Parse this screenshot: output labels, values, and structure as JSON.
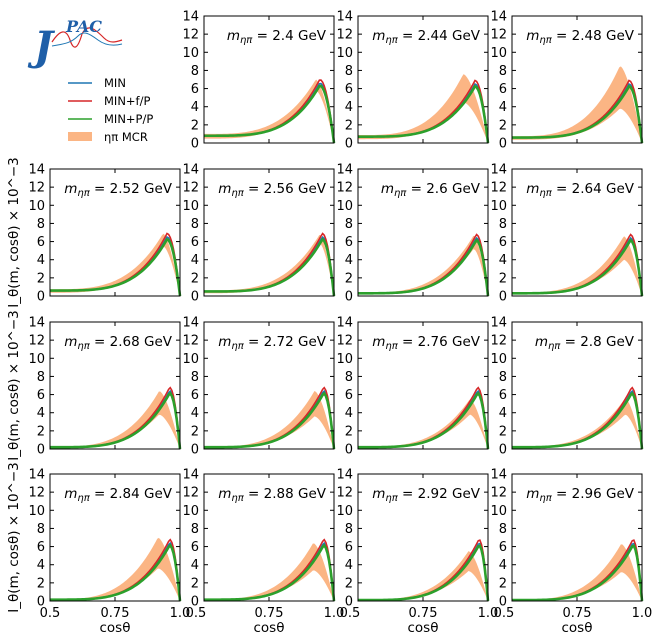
{
  "logo": {
    "big_letter": "J",
    "small_letters": "PAC"
  },
  "legend": {
    "items": [
      {
        "label": "MIN",
        "color": "#1f77b4",
        "kind": "line"
      },
      {
        "label": "MIN+f/P",
        "color": "#d62728",
        "kind": "line"
      },
      {
        "label": "MIN+P/P",
        "color": "#2ca02c",
        "kind": "line"
      },
      {
        "label": "ηπ MCR",
        "color": "#fbb584",
        "kind": "band"
      }
    ]
  },
  "chart_data": {
    "type": "line",
    "xlabel": "cosθ",
    "ylabel": "I_θ(m, cosθ) × 10^−3",
    "xlim": [
      0.5,
      1.0
    ],
    "ylim": [
      0,
      14
    ],
    "xticks": [
      "0.5",
      "0.75",
      "1.0"
    ],
    "yticks": [
      "0",
      "2",
      "4",
      "6",
      "8",
      "10",
      "12",
      "14"
    ],
    "label_prefix": "m",
    "label_subscript": "ηπ",
    "series_names": [
      "MIN",
      "MIN+f/P",
      "MIN+P/P",
      "ηπ MCR"
    ],
    "panels": [
      {
        "mass": "= 2.4 GeV",
        "peak_x": 0.945,
        "peak_y": 6.6,
        "y_start": 0.8,
        "band_peak_x": 0.93,
        "band_upper": 7.0,
        "band_lower": 5.8
      },
      {
        "mass": "= 2.44 GeV",
        "peak_x": 0.95,
        "peak_y": 6.5,
        "y_start": 0.7,
        "band_peak_x": 0.905,
        "band_upper": 7.6,
        "band_lower": 4.5
      },
      {
        "mass": "= 2.48 GeV",
        "peak_x": 0.95,
        "peak_y": 6.5,
        "y_start": 0.6,
        "band_peak_x": 0.915,
        "band_upper": 8.5,
        "band_lower": 3.8
      },
      {
        "mass": "= 2.52 GeV",
        "peak_x": 0.95,
        "peak_y": 6.5,
        "y_start": 0.6,
        "band_peak_x": 0.935,
        "band_upper": 6.9,
        "band_lower": 5.5
      },
      {
        "mass": "= 2.56 GeV",
        "peak_x": 0.955,
        "peak_y": 6.5,
        "y_start": 0.5,
        "band_peak_x": 0.945,
        "band_upper": 6.8,
        "band_lower": 5.8
      },
      {
        "mass": "= 2.6 GeV",
        "peak_x": 0.955,
        "peak_y": 6.4,
        "y_start": 0.3,
        "band_peak_x": 0.945,
        "band_upper": 6.7,
        "band_lower": 5.2
      },
      {
        "mass": "= 2.64 GeV",
        "peak_x": 0.955,
        "peak_y": 6.4,
        "y_start": 0.3,
        "band_peak_x": 0.93,
        "band_upper": 6.6,
        "band_lower": 4.0
      },
      {
        "mass": "= 2.68 GeV",
        "peak_x": 0.96,
        "peak_y": 6.4,
        "y_start": 0.2,
        "band_peak_x": 0.92,
        "band_upper": 6.4,
        "band_lower": 3.8
      },
      {
        "mass": "= 2.72 GeV",
        "peak_x": 0.96,
        "peak_y": 6.4,
        "y_start": 0.2,
        "band_peak_x": 0.925,
        "band_upper": 6.4,
        "band_lower": 3.6
      },
      {
        "mass": "= 2.76 GeV",
        "peak_x": 0.96,
        "peak_y": 6.4,
        "y_start": 0.2,
        "band_peak_x": 0.93,
        "band_upper": 5.5,
        "band_lower": 3.8
      },
      {
        "mass": "= 2.8 GeV",
        "peak_x": 0.96,
        "peak_y": 6.4,
        "y_start": 0.2,
        "band_peak_x": 0.935,
        "band_upper": 5.6,
        "band_lower": 3.8
      },
      {
        "mass": "= 2.84 GeV",
        "peak_x": 0.96,
        "peak_y": 6.4,
        "y_start": 0.15,
        "band_peak_x": 0.915,
        "band_upper": 7.0,
        "band_lower": 3.6
      },
      {
        "mass": "= 2.88 GeV",
        "peak_x": 0.96,
        "peak_y": 6.4,
        "y_start": 0.15,
        "band_peak_x": 0.92,
        "band_upper": 6.4,
        "band_lower": 3.4
      },
      {
        "mass": "= 2.92 GeV",
        "peak_x": 0.965,
        "peak_y": 6.4,
        "y_start": 0.1,
        "band_peak_x": 0.925,
        "band_upper": 5.5,
        "band_lower": 3.3
      },
      {
        "mass": "= 2.96 GeV",
        "peak_x": 0.965,
        "peak_y": 6.4,
        "y_start": 0.1,
        "band_peak_x": 0.92,
        "band_upper": 6.3,
        "band_lower": 3.2
      }
    ]
  }
}
